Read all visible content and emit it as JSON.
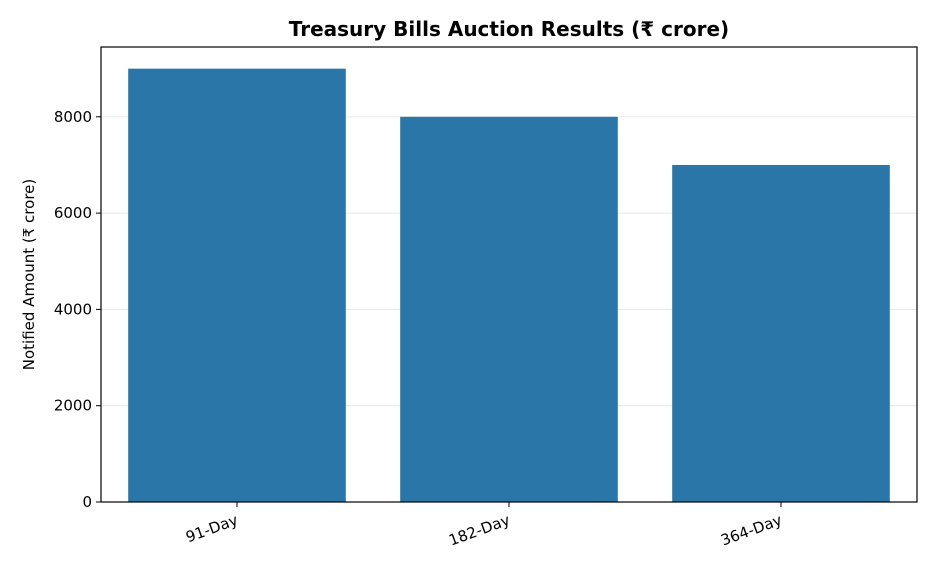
{
  "chart_data": {
    "type": "bar",
    "title": "Treasury Bills Auction Results (₹ crore)",
    "xlabel": "",
    "ylabel": "Notified Amount (₹ crore)",
    "categories": [
      "91-Day",
      "182-Day",
      "364-Day"
    ],
    "values": [
      9000,
      8000,
      7000
    ],
    "ylim": [
      0,
      9450
    ],
    "yticks": [
      0,
      2000,
      4000,
      6000,
      8000
    ],
    "grid": "horizontal",
    "bar_color": "#2a76a8",
    "legend": "none"
  }
}
